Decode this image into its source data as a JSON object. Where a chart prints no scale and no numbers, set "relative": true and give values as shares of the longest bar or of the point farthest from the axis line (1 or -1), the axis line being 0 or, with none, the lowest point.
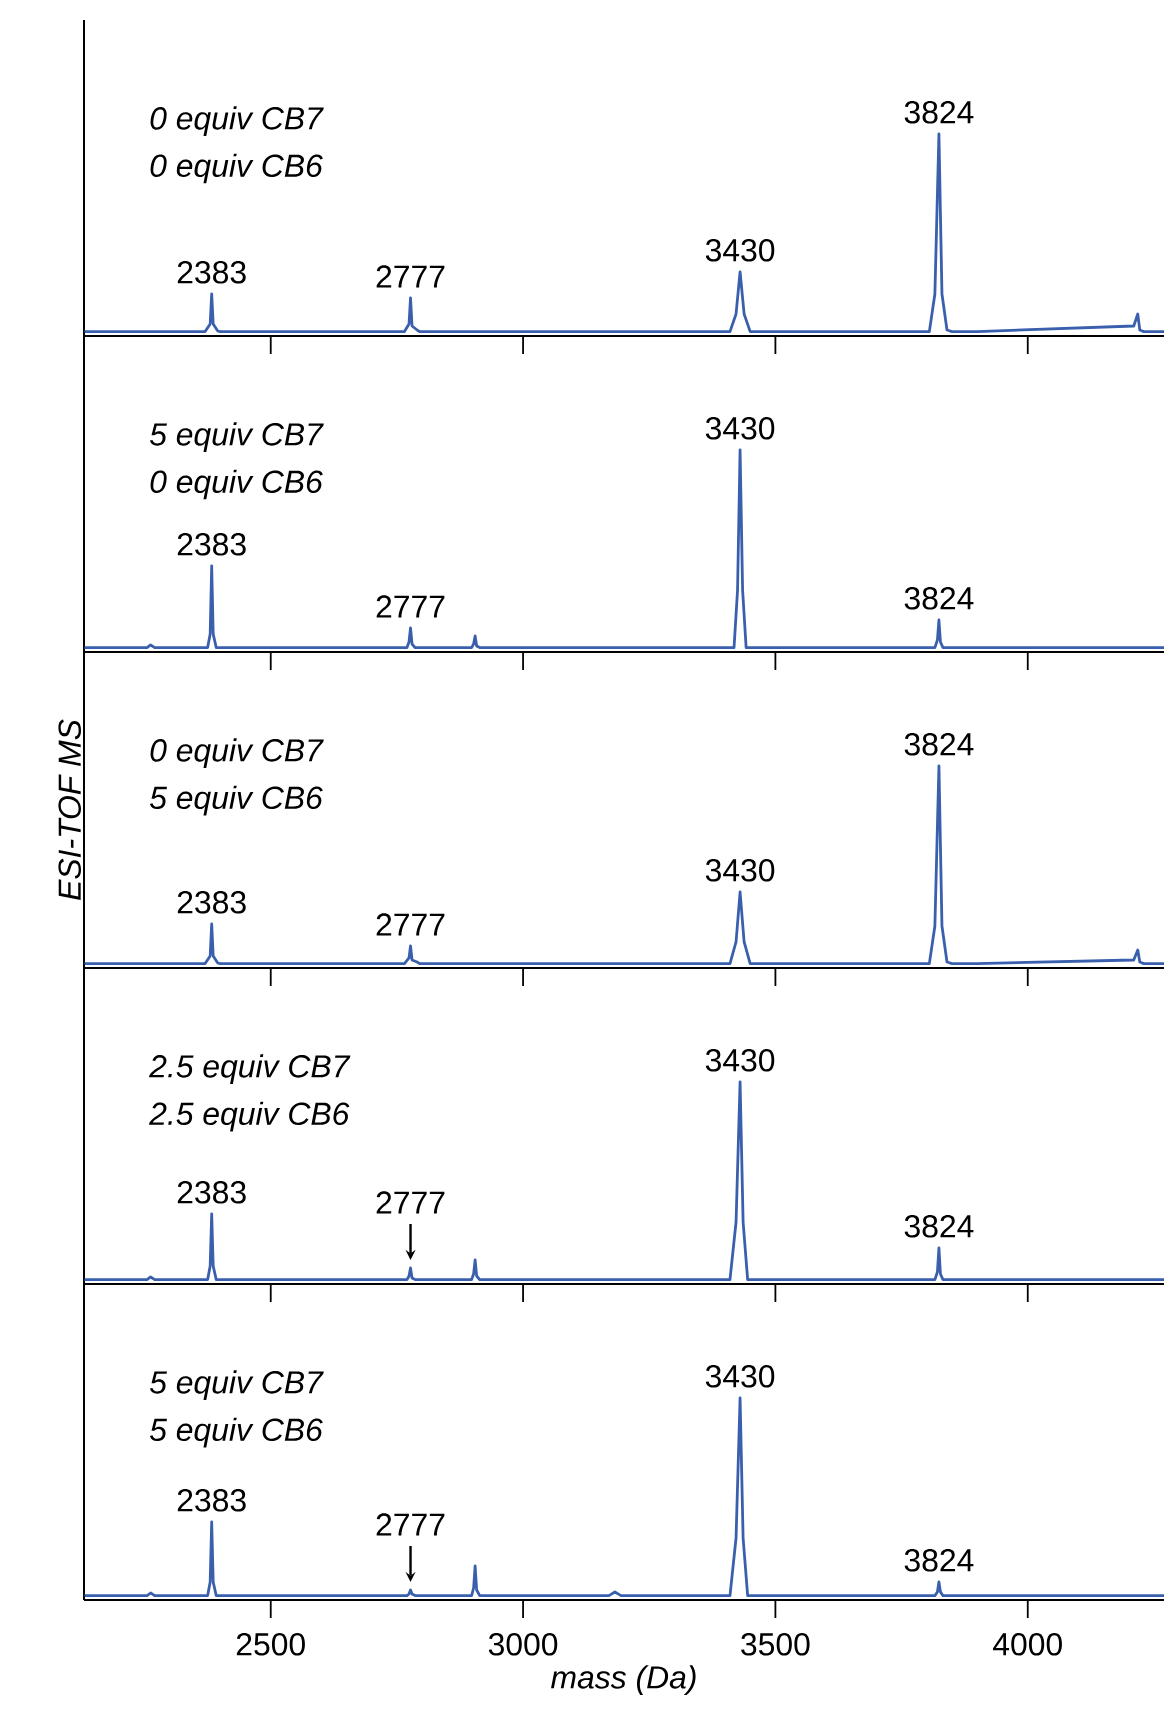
{
  "chart_data": [
    {
      "type": "line",
      "color": "#3a5fad",
      "relative": true,
      "xlim": [
        2130,
        4270
      ],
      "xticks": [
        2500,
        3000,
        3500,
        4000
      ],
      "tick_labels": false,
      "x": [
        2131,
        2370,
        2380,
        2383,
        2386,
        2395,
        2400,
        2765,
        2774,
        2777,
        2780,
        2790,
        2795,
        3410,
        3422,
        3430,
        3438,
        3450,
        3805,
        3816,
        3824,
        3830,
        3840,
        3850,
        3900,
        4210,
        4218,
        4222,
        4230,
        4270
      ],
      "values": [
        0.012,
        0.012,
        0.05,
        0.2,
        0.05,
        0.015,
        0.012,
        0.012,
        0.05,
        0.18,
        0.04,
        0.02,
        0.012,
        0.012,
        0.1,
        0.31,
        0.1,
        0.012,
        0.012,
        0.2,
        1,
        0.2,
        0.02,
        0.012,
        0.012,
        0.04,
        0.1,
        0.02,
        0.012,
        0.012
      ],
      "annotations": [
        "0 equiv CB7",
        "0 equiv CB6",
        {
          "text": "2383",
          "x": 2383,
          "y": 0.2
        },
        {
          "text": "2777",
          "x": 2777,
          "y": 0.18
        },
        {
          "text": "3430",
          "x": 3430,
          "y": 0.31
        },
        {
          "text": "3824",
          "x": 3824,
          "y": 1
        }
      ]
    },
    {
      "type": "line",
      "color": "#3a5fad",
      "relative": true,
      "xlim": [
        2130,
        4270
      ],
      "xticks": [
        2500,
        3000,
        3500,
        4000
      ],
      "tick_labels": false,
      "x": [
        2131,
        2255,
        2262,
        2270,
        2375,
        2380,
        2383,
        2386,
        2392,
        2770,
        2774,
        2777,
        2780,
        2786,
        2898,
        2902,
        2905,
        2908,
        2914,
        3418,
        3425,
        3430,
        3435,
        3442,
        3816,
        3821,
        3824,
        3827,
        3832,
        4270
      ],
      "values": [
        0.012,
        0.012,
        0.025,
        0.012,
        0.012,
        0.08,
        0.42,
        0.08,
        0.012,
        0.012,
        0.04,
        0.11,
        0.03,
        0.012,
        0.012,
        0.03,
        0.07,
        0.02,
        0.012,
        0.012,
        0.3,
        1,
        0.3,
        0.012,
        0.012,
        0.05,
        0.15,
        0.04,
        0.012,
        0.012
      ],
      "annotations": [
        "5 equiv CB7",
        "0 equiv CB6",
        {
          "text": "2383",
          "x": 2383,
          "y": 0.42
        },
        {
          "text": "2777",
          "x": 2777,
          "y": 0.11
        },
        {
          "text": "3430",
          "x": 3430,
          "y": 1
        },
        {
          "text": "3824",
          "x": 3824,
          "y": 0.15
        }
      ]
    },
    {
      "type": "line",
      "color": "#3a5fad",
      "relative": true,
      "xlim": [
        2130,
        4270
      ],
      "xticks": [
        2500,
        3000,
        3500,
        4000
      ],
      "tick_labels": false,
      "ylabel": "ESI-TOF MS",
      "x": [
        2131,
        2370,
        2380,
        2383,
        2386,
        2395,
        2400,
        2765,
        2774,
        2777,
        2780,
        2790,
        2795,
        3410,
        3422,
        3430,
        3438,
        3450,
        3805,
        3816,
        3824,
        3830,
        3840,
        3850,
        3900,
        4210,
        4218,
        4222,
        4230,
        4270
      ],
      "values": [
        0.012,
        0.012,
        0.05,
        0.21,
        0.05,
        0.015,
        0.012,
        0.012,
        0.04,
        0.1,
        0.03,
        0.02,
        0.012,
        0.012,
        0.12,
        0.37,
        0.12,
        0.012,
        0.012,
        0.2,
        1,
        0.2,
        0.02,
        0.012,
        0.012,
        0.03,
        0.08,
        0.02,
        0.012,
        0.012
      ],
      "annotations": [
        "0 equiv CB7",
        "5 equiv CB6",
        {
          "text": "2383",
          "x": 2383,
          "y": 0.21
        },
        {
          "text": "2777",
          "x": 2777,
          "y": 0.1
        },
        {
          "text": "3430",
          "x": 3430,
          "y": 0.37
        },
        {
          "text": "3824",
          "x": 3824,
          "y": 1
        }
      ]
    },
    {
      "type": "line",
      "color": "#3a5fad",
      "relative": true,
      "xlim": [
        2130,
        4270
      ],
      "xticks": [
        2500,
        3000,
        3500,
        4000
      ],
      "tick_labels": false,
      "x": [
        2131,
        2255,
        2262,
        2270,
        2375,
        2380,
        2383,
        2386,
        2392,
        2770,
        2774,
        2777,
        2780,
        2786,
        2898,
        2902,
        2905,
        2908,
        2914,
        3410,
        3422,
        3430,
        3436,
        3445,
        3816,
        3821,
        3824,
        3827,
        3832,
        4270
      ],
      "values": [
        0.012,
        0.012,
        0.025,
        0.012,
        0.012,
        0.08,
        0.34,
        0.08,
        0.012,
        0.012,
        0.03,
        0.07,
        0.02,
        0.012,
        0.012,
        0.04,
        0.11,
        0.03,
        0.012,
        0.012,
        0.3,
        1,
        0.3,
        0.012,
        0.012,
        0.05,
        0.17,
        0.04,
        0.012,
        0.012
      ],
      "annotations": [
        "2.5 equiv CB7",
        "2.5 equiv CB6",
        {
          "text": "2383",
          "x": 2383,
          "y": 0.34
        },
        {
          "text": "2777",
          "x": 2777,
          "y": 0.07
        },
        {
          "text": "3430",
          "x": 3430,
          "y": 1
        },
        {
          "text": "3824",
          "x": 3824,
          "y": 0.17
        }
      ]
    },
    {
      "type": "line",
      "color": "#3a5fad",
      "relative": true,
      "xlim": [
        2130,
        4270
      ],
      "xticks": [
        2500,
        3000,
        3500,
        4000
      ],
      "tick_labels": "x",
      "xlabel": "mass (Da)",
      "x": [
        2131,
        2255,
        2262,
        2270,
        2375,
        2380,
        2383,
        2386,
        2392,
        2770,
        2774,
        2777,
        2780,
        2786,
        2898,
        2902,
        2905,
        2908,
        2914,
        3170,
        3182,
        3194,
        3410,
        3422,
        3430,
        3436,
        3445,
        3816,
        3821,
        3824,
        3827,
        3832,
        4270
      ],
      "values": [
        0.012,
        0.012,
        0.025,
        0.012,
        0.012,
        0.08,
        0.38,
        0.08,
        0.012,
        0.012,
        0.02,
        0.04,
        0.02,
        0.012,
        0.012,
        0.05,
        0.16,
        0.04,
        0.012,
        0.012,
        0.03,
        0.012,
        0.012,
        0.3,
        1,
        0.3,
        0.012,
        0.012,
        0.03,
        0.08,
        0.03,
        0.012,
        0.012
      ],
      "annotations": [
        "5 equiv CB7",
        "5 equiv CB6",
        {
          "text": "2383",
          "x": 2383,
          "y": 0.38
        },
        {
          "text": "2777",
          "x": 2777,
          "y": 0.04
        },
        {
          "text": "3430",
          "x": 3430,
          "y": 1
        },
        {
          "text": "3824",
          "x": 3824,
          "y": 0.08
        }
      ]
    }
  ]
}
